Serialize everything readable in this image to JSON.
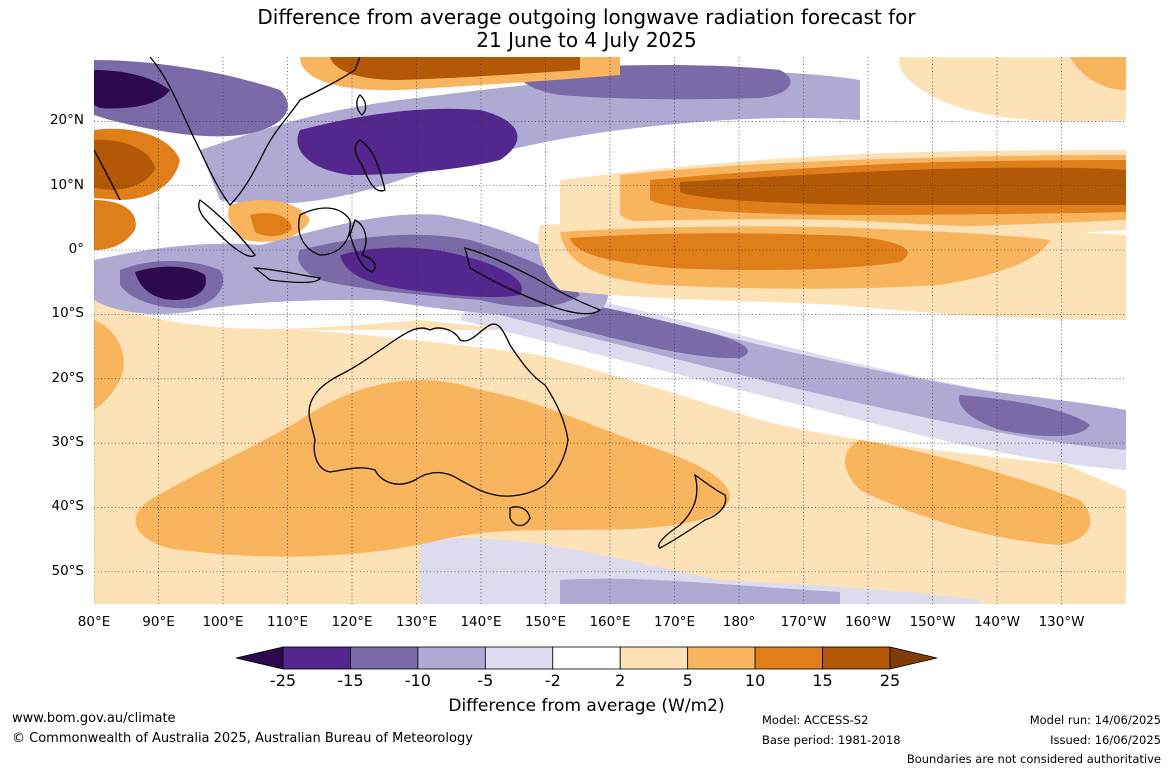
{
  "title": {
    "line1": "Difference from average outgoing longwave radiation forecast for",
    "line2": "21 June to 4 July 2025"
  },
  "map": {
    "lat_labels": [
      "20°N",
      "10°N",
      "0°",
      "10°S",
      "20°S",
      "30°S",
      "40°S",
      "50°S"
    ],
    "lon_labels": [
      "80°E",
      "90°E",
      "100°E",
      "110°E",
      "120°E",
      "130°E",
      "140°E",
      "150°E",
      "160°E",
      "170°E",
      "180°",
      "170°W",
      "160°W",
      "150°W",
      "140°W",
      "130°W"
    ],
    "lat_values": [
      20,
      10,
      0,
      -10,
      -20,
      -30,
      -40,
      -50
    ],
    "lon_values": [
      80,
      90,
      100,
      110,
      120,
      130,
      140,
      150,
      160,
      170,
      180,
      190,
      200,
      210,
      220,
      230
    ],
    "extent": {
      "lon_min": 80,
      "lon_max": 240,
      "lat_min": -55,
      "lat_max": 30
    },
    "region": "Australia, Maritime Continent and western Pacific"
  },
  "colorbar": {
    "labels": [
      "-25",
      "-15",
      "-10",
      "-5",
      "-2",
      "2",
      "5",
      "10",
      "15",
      "25"
    ],
    "colors": [
      "#2d0a4e",
      "#54278f",
      "#7a6aa8",
      "#aeaad4",
      "#dcdcee",
      "#ffffff",
      "#fde2b8",
      "#f9b45e",
      "#e07f1a",
      "#b35806",
      "#7f3b08"
    ],
    "title": "Difference from average (W/m2)"
  },
  "footer": {
    "website": "www.bom.gov.au/climate",
    "copyright": "© Commonwealth of Australia 2025, Australian Bureau of Meteorology",
    "model": "Model: ACCESS-S2",
    "base_period": "Base period: 1981-2018",
    "model_run": "Model run: 14/06/2025",
    "issued": "Issued: 16/06/2025",
    "disclaimer": "Boundaries are not considered authoritative"
  }
}
